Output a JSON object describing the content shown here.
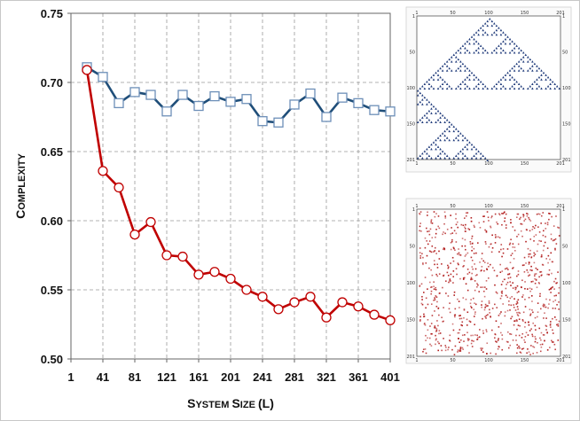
{
  "chart_data": {
    "type": "line",
    "xlabel": "System Size (L)",
    "ylabel": "Complexity",
    "xlim": [
      1,
      401
    ],
    "ylim": [
      0.5,
      0.75
    ],
    "xticks": [
      "1",
      "41",
      "81",
      "121",
      "161",
      "201",
      "241",
      "281",
      "321",
      "361",
      "401"
    ],
    "yticks": [
      "0.50",
      "0.55",
      "0.60",
      "0.65",
      "0.70",
      "0.75"
    ],
    "grid": true,
    "series": [
      {
        "marker": "square",
        "color": "#1f4e79",
        "x": [
          21,
          41,
          61,
          81,
          101,
          121,
          141,
          161,
          181,
          201,
          221,
          241,
          261,
          281,
          301,
          321,
          341,
          361,
          381,
          401
        ],
        "y": [
          0.711,
          0.704,
          0.685,
          0.693,
          0.691,
          0.679,
          0.691,
          0.683,
          0.69,
          0.686,
          0.688,
          0.672,
          0.671,
          0.684,
          0.692,
          0.675,
          0.689,
          0.685,
          0.68,
          0.679
        ]
      },
      {
        "marker": "circle",
        "color": "#c00000",
        "x": [
          21,
          41,
          61,
          81,
          101,
          121,
          141,
          161,
          181,
          201,
          221,
          241,
          261,
          281,
          301,
          321,
          341,
          361,
          381,
          401
        ],
        "y": [
          0.709,
          0.636,
          0.624,
          0.59,
          0.599,
          0.575,
          0.574,
          0.561,
          0.563,
          0.558,
          0.55,
          0.545,
          0.536,
          0.541,
          0.545,
          0.53,
          0.541,
          0.538,
          0.532,
          0.528
        ]
      }
    ],
    "insets": [
      {
        "kind": "sierpinski-pattern",
        "color": "#1f3a7a",
        "ticks_top": [
          "1",
          "50",
          "100",
          "150",
          "201"
        ],
        "ticks_side": [
          "1",
          "50",
          "100",
          "150",
          "201"
        ]
      },
      {
        "kind": "random-pattern",
        "color": "#b01818",
        "ticks_top": [
          "1",
          "50",
          "100",
          "150",
          "201"
        ],
        "ticks_side": [
          "1",
          "50",
          "100",
          "150",
          "201"
        ]
      }
    ]
  }
}
